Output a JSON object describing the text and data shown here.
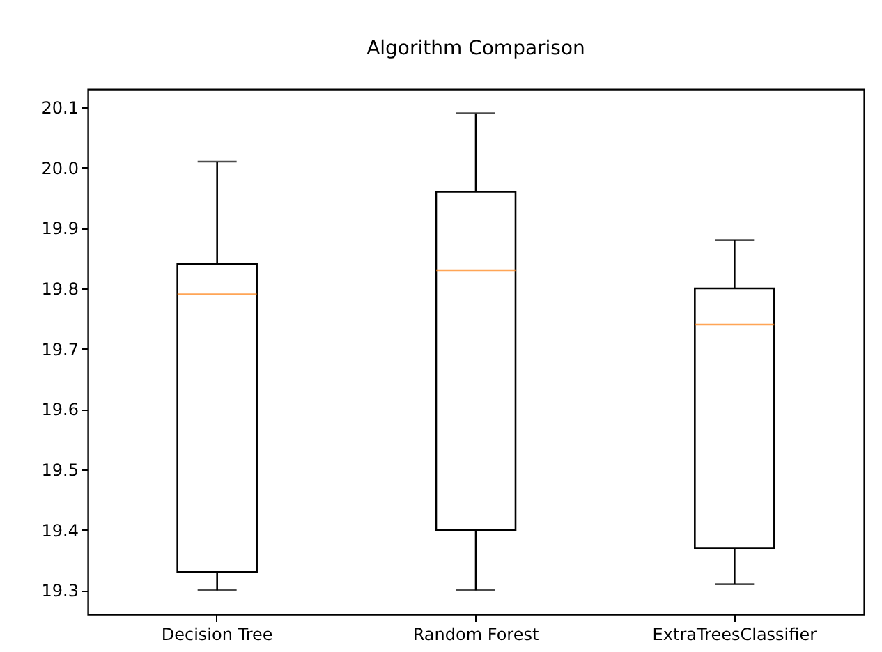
{
  "chart_data": {
    "type": "box",
    "title": "Algorithm Comparison",
    "categories": [
      "Decision Tree",
      "Random Forest",
      "ExtraTreesClassifier"
    ],
    "boxes": [
      {
        "low": 19.3,
        "q1": 19.33,
        "median": 19.79,
        "q3": 19.84,
        "high": 20.01
      },
      {
        "low": 19.3,
        "q1": 19.4,
        "median": 19.83,
        "q3": 19.96,
        "high": 20.09
      },
      {
        "low": 19.31,
        "q1": 19.37,
        "median": 19.74,
        "q3": 19.8,
        "high": 19.88
      }
    ],
    "ylim": [
      19.26,
      20.13
    ],
    "yticks": [
      19.3,
      19.4,
      19.5,
      19.6,
      19.7,
      19.8,
      19.9,
      {
        "value": 20,
        "label": "20.0"
      },
      20.1
    ]
  }
}
